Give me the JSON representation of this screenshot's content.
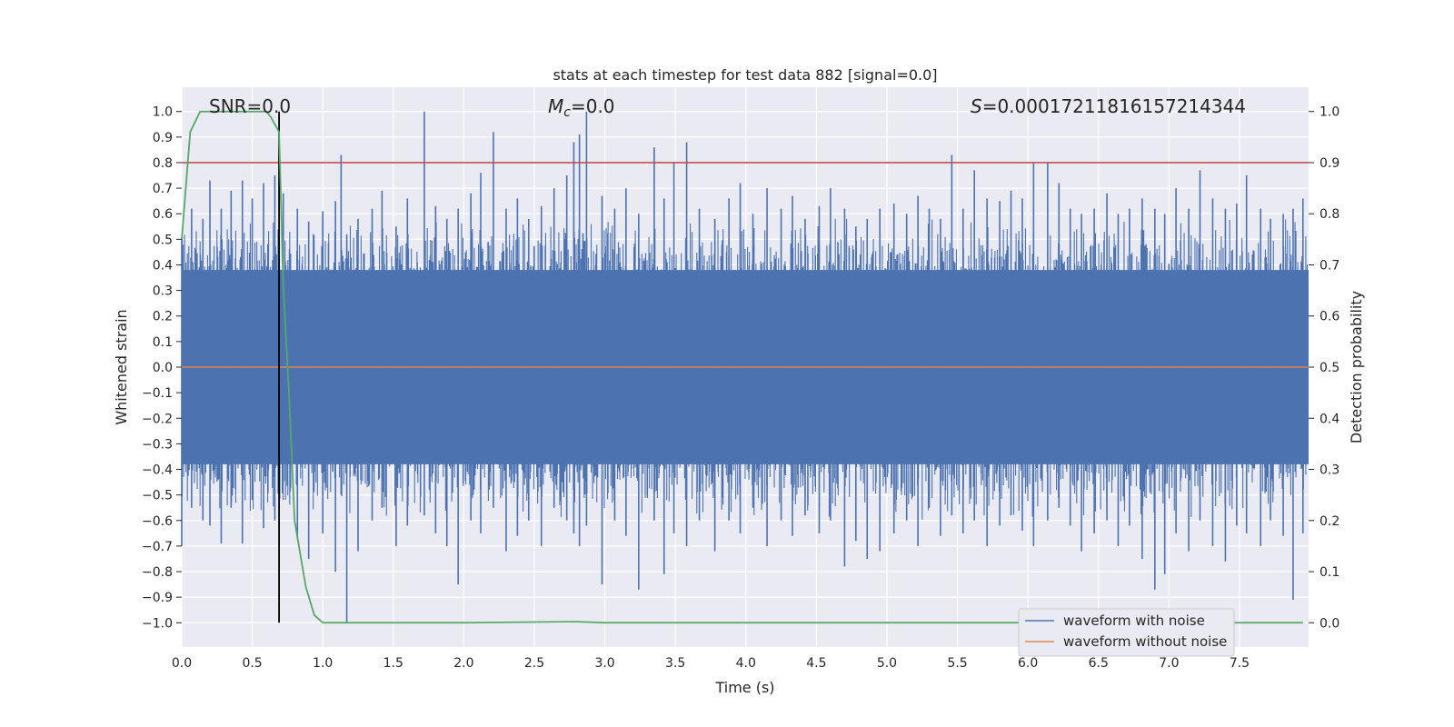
{
  "chart_data": {
    "type": "line",
    "title": "stats at each timestep for test data 882 [signal=0.0]",
    "xlabel": "Time (s)",
    "ylabel": "Whitened strain",
    "y2label": "Detection probability",
    "xlim": [
      0.0,
      7.99
    ],
    "ylim": [
      -1.095,
      1.095
    ],
    "y2lim": [
      -0.0475,
      1.0475
    ],
    "xticks": [
      0.0,
      0.5,
      1.0,
      1.5,
      2.0,
      2.5,
      3.0,
      3.5,
      4.0,
      4.5,
      5.0,
      5.5,
      6.0,
      6.5,
      7.0,
      7.5
    ],
    "xticklabels": [
      "0.0",
      "0.5",
      "1.0",
      "1.5",
      "2.0",
      "2.5",
      "3.0",
      "3.5",
      "4.0",
      "4.5",
      "5.0",
      "5.5",
      "6.0",
      "6.5",
      "7.0",
      "7.5"
    ],
    "yticks": [
      -1.0,
      -0.9,
      -0.8,
      -0.7,
      -0.6,
      -0.5,
      -0.4,
      -0.3,
      -0.2,
      -0.1,
      0.0,
      0.1,
      0.2,
      0.3,
      0.4,
      0.5,
      0.6,
      0.7,
      0.8,
      0.9,
      1.0
    ],
    "yticklabels": [
      "−1.0",
      "−0.9",
      "−0.8",
      "−0.7",
      "−0.6",
      "−0.5",
      "−0.4",
      "−0.3",
      "−0.2",
      "−0.1",
      "0.0",
      "0.1",
      "0.2",
      "0.3",
      "0.4",
      "0.5",
      "0.6",
      "0.7",
      "0.8",
      "0.9",
      "1.0"
    ],
    "y2ticks": [
      0.0,
      0.1,
      0.2,
      0.3,
      0.4,
      0.5,
      0.6,
      0.7,
      0.8,
      0.9,
      1.0
    ],
    "y2ticklabels": [
      "0.0",
      "0.1",
      "0.2",
      "0.3",
      "0.4",
      "0.5",
      "0.6",
      "0.7",
      "0.8",
      "0.9",
      "1.0"
    ],
    "grid": true,
    "legend": {
      "position": "lower right",
      "entries": [
        {
          "name": "waveform with noise",
          "color": "#4c72b0"
        },
        {
          "name": "waveform without noise",
          "color": "#dd8452"
        }
      ]
    },
    "annotations": {
      "snr": "SNR=0.0",
      "mc_symbol": "M",
      "mc_sub": "c",
      "mc_value": "=0.0",
      "s_symbol": "S",
      "s_value": "=0.00017211816157214344"
    },
    "threshold": {
      "y2": 0.9,
      "color": "#c44e52"
    },
    "peak_marker": {
      "x": 0.69,
      "color": "#000000"
    },
    "noise_spikes": [
      {
        "x": 0.0,
        "top": 0.5,
        "bottom": -0.7
      },
      {
        "x": 0.07,
        "top": 0.62,
        "bottom": -0.55
      },
      {
        "x": 0.15,
        "top": 0.58,
        "bottom": -0.6
      },
      {
        "x": 0.2,
        "top": 0.73,
        "bottom": -0.62
      },
      {
        "x": 0.28,
        "top": 0.62,
        "bottom": -0.69
      },
      {
        "x": 0.35,
        "top": 0.69,
        "bottom": -0.55
      },
      {
        "x": 0.43,
        "top": 0.73,
        "bottom": -0.69
      },
      {
        "x": 0.5,
        "top": 0.66,
        "bottom": -0.52
      },
      {
        "x": 0.58,
        "top": 0.72,
        "bottom": -0.63
      },
      {
        "x": 0.66,
        "top": 0.75,
        "bottom": -0.6
      },
      {
        "x": 0.72,
        "top": 0.68,
        "bottom": -0.45
      },
      {
        "x": 0.82,
        "top": 0.62,
        "bottom": -0.67
      },
      {
        "x": 0.9,
        "top": 0.57,
        "bottom": -0.75
      },
      {
        "x": 1.0,
        "top": 0.61,
        "bottom": -0.65
      },
      {
        "x": 1.09,
        "top": 0.65,
        "bottom": -0.8
      },
      {
        "x": 1.13,
        "top": 0.83,
        "bottom": -0.5
      },
      {
        "x": 1.17,
        "top": 0.52,
        "bottom": -1.0
      },
      {
        "x": 1.25,
        "top": 0.58,
        "bottom": -0.72
      },
      {
        "x": 1.35,
        "top": 0.62,
        "bottom": -0.6
      },
      {
        "x": 1.42,
        "top": 0.69,
        "bottom": -0.55
      },
      {
        "x": 1.52,
        "top": 0.55,
        "bottom": -0.7
      },
      {
        "x": 1.6,
        "top": 0.66,
        "bottom": -0.62
      },
      {
        "x": 1.72,
        "top": 1.0,
        "bottom": -0.58
      },
      {
        "x": 1.8,
        "top": 0.63,
        "bottom": -0.65
      },
      {
        "x": 1.88,
        "top": 0.58,
        "bottom": -0.7
      },
      {
        "x": 1.96,
        "top": 0.62,
        "bottom": -0.85
      },
      {
        "x": 2.05,
        "top": 0.68,
        "bottom": -0.6
      },
      {
        "x": 2.12,
        "top": 0.76,
        "bottom": -0.65
      },
      {
        "x": 2.21,
        "top": 0.92,
        "bottom": -0.55
      },
      {
        "x": 2.3,
        "top": 0.62,
        "bottom": -0.72
      },
      {
        "x": 2.38,
        "top": 0.66,
        "bottom": -0.66
      },
      {
        "x": 2.46,
        "top": 0.58,
        "bottom": -0.6
      },
      {
        "x": 2.55,
        "top": 0.63,
        "bottom": -0.7
      },
      {
        "x": 2.64,
        "top": 0.7,
        "bottom": -0.55
      },
      {
        "x": 2.73,
        "top": 0.75,
        "bottom": -0.6
      },
      {
        "x": 2.78,
        "top": 0.88,
        "bottom": -0.65
      },
      {
        "x": 2.82,
        "top": 0.91,
        "bottom": -0.7
      },
      {
        "x": 2.87,
        "top": 1.0,
        "bottom": -0.62
      },
      {
        "x": 2.98,
        "top": 0.67,
        "bottom": -0.85
      },
      {
        "x": 3.07,
        "top": 0.62,
        "bottom": -0.6
      },
      {
        "x": 3.15,
        "top": 0.7,
        "bottom": -0.66
      },
      {
        "x": 3.24,
        "top": 0.6,
        "bottom": -0.87
      },
      {
        "x": 3.35,
        "top": 0.86,
        "bottom": -0.6
      },
      {
        "x": 3.42,
        "top": 0.66,
        "bottom": -0.81
      },
      {
        "x": 3.49,
        "top": 0.8,
        "bottom": -0.65
      },
      {
        "x": 3.58,
        "top": 0.88,
        "bottom": -0.7
      },
      {
        "x": 3.67,
        "top": 0.62,
        "bottom": -0.6
      },
      {
        "x": 3.78,
        "top": 0.58,
        "bottom": -0.72
      },
      {
        "x": 3.88,
        "top": 0.66,
        "bottom": -0.6
      },
      {
        "x": 3.96,
        "top": 0.72,
        "bottom": -0.65
      },
      {
        "x": 4.05,
        "top": 0.6,
        "bottom": -0.55
      },
      {
        "x": 4.15,
        "top": 0.7,
        "bottom": -0.7
      },
      {
        "x": 4.25,
        "top": 0.62,
        "bottom": -0.6
      },
      {
        "x": 4.33,
        "top": 0.67,
        "bottom": -0.66
      },
      {
        "x": 4.42,
        "top": 0.58,
        "bottom": -0.58
      },
      {
        "x": 4.52,
        "top": 0.63,
        "bottom": -0.65
      },
      {
        "x": 4.6,
        "top": 0.7,
        "bottom": -0.6
      },
      {
        "x": 4.7,
        "top": 0.62,
        "bottom": -0.78
      },
      {
        "x": 4.78,
        "top": 0.55,
        "bottom": -0.68
      },
      {
        "x": 4.86,
        "top": 0.58,
        "bottom": -0.75
      },
      {
        "x": 4.95,
        "top": 0.62,
        "bottom": -0.72
      },
      {
        "x": 5.05,
        "top": 0.64,
        "bottom": -0.65
      },
      {
        "x": 5.14,
        "top": 0.6,
        "bottom": -0.6
      },
      {
        "x": 5.22,
        "top": 0.67,
        "bottom": -0.7
      },
      {
        "x": 5.3,
        "top": 0.62,
        "bottom": -0.55
      },
      {
        "x": 5.38,
        "top": 0.58,
        "bottom": -0.66
      },
      {
        "x": 5.46,
        "top": 0.83,
        "bottom": -0.58
      },
      {
        "x": 5.54,
        "top": 0.62,
        "bottom": -0.65
      },
      {
        "x": 5.62,
        "top": 0.77,
        "bottom": -0.6
      },
      {
        "x": 5.71,
        "top": 0.66,
        "bottom": -0.7
      },
      {
        "x": 5.8,
        "top": 0.65,
        "bottom": -0.62
      },
      {
        "x": 5.88,
        "top": 0.69,
        "bottom": -0.58
      },
      {
        "x": 5.96,
        "top": 0.66,
        "bottom": -0.64
      },
      {
        "x": 6.04,
        "top": 0.8,
        "bottom": -0.7
      },
      {
        "x": 6.14,
        "top": 0.8,
        "bottom": -0.6
      },
      {
        "x": 6.22,
        "top": 0.72,
        "bottom": -0.55
      },
      {
        "x": 6.3,
        "top": 0.62,
        "bottom": -0.62
      },
      {
        "x": 6.38,
        "top": 0.6,
        "bottom": -0.72
      },
      {
        "x": 6.47,
        "top": 0.62,
        "bottom": -0.65
      },
      {
        "x": 6.56,
        "top": 0.68,
        "bottom": -0.6
      },
      {
        "x": 6.64,
        "top": 0.6,
        "bottom": -0.7
      },
      {
        "x": 6.72,
        "top": 0.62,
        "bottom": -0.62
      },
      {
        "x": 6.81,
        "top": 0.66,
        "bottom": -0.75
      },
      {
        "x": 6.9,
        "top": 0.62,
        "bottom": -0.87
      },
      {
        "x": 6.97,
        "top": 0.6,
        "bottom": -0.81
      },
      {
        "x": 7.05,
        "top": 0.7,
        "bottom": -0.65
      },
      {
        "x": 7.14,
        "top": 0.62,
        "bottom": -0.72
      },
      {
        "x": 7.22,
        "top": 0.77,
        "bottom": -0.6
      },
      {
        "x": 7.31,
        "top": 0.66,
        "bottom": -0.7
      },
      {
        "x": 7.4,
        "top": 0.62,
        "bottom": -0.76
      },
      {
        "x": 7.48,
        "top": 0.64,
        "bottom": -0.62
      },
      {
        "x": 7.55,
        "top": 0.75,
        "bottom": -0.65
      },
      {
        "x": 7.65,
        "top": 0.62,
        "bottom": -0.7
      },
      {
        "x": 7.72,
        "top": 0.58,
        "bottom": -0.6
      },
      {
        "x": 7.81,
        "top": 0.6,
        "bottom": -0.66
      },
      {
        "x": 7.88,
        "top": 0.62,
        "bottom": -0.91
      },
      {
        "x": 7.95,
        "top": 0.66,
        "bottom": -0.65
      }
    ],
    "series": [
      {
        "name": "waveform with noise",
        "color": "#4c72b0",
        "axis": "left",
        "band": [
          -0.38,
          0.38
        ]
      },
      {
        "name": "waveform without noise",
        "color": "#dd8452",
        "axis": "left",
        "x": [
          0.0,
          7.99
        ],
        "y": [
          0.0,
          0.0
        ]
      },
      {
        "color": "#55a868",
        "axis": "right",
        "x": [
          0.0,
          0.06,
          0.13,
          0.2,
          0.3,
          0.4,
          0.5,
          0.6,
          0.63,
          0.69,
          0.72,
          0.76,
          0.8,
          0.88,
          0.94,
          1.0,
          1.1,
          2.0,
          2.8,
          3.0,
          4.0,
          5.0,
          6.0,
          7.0,
          7.95
        ],
        "y": [
          0.75,
          0.96,
          1.0,
          1.0,
          1.0,
          1.0,
          1.0,
          1.0,
          0.99,
          0.96,
          0.66,
          0.45,
          0.2,
          0.07,
          0.015,
          0.0,
          0.0,
          0.0,
          0.002,
          0.0,
          0.0,
          0.0,
          0.0,
          0.0,
          0.0
        ]
      }
    ]
  }
}
